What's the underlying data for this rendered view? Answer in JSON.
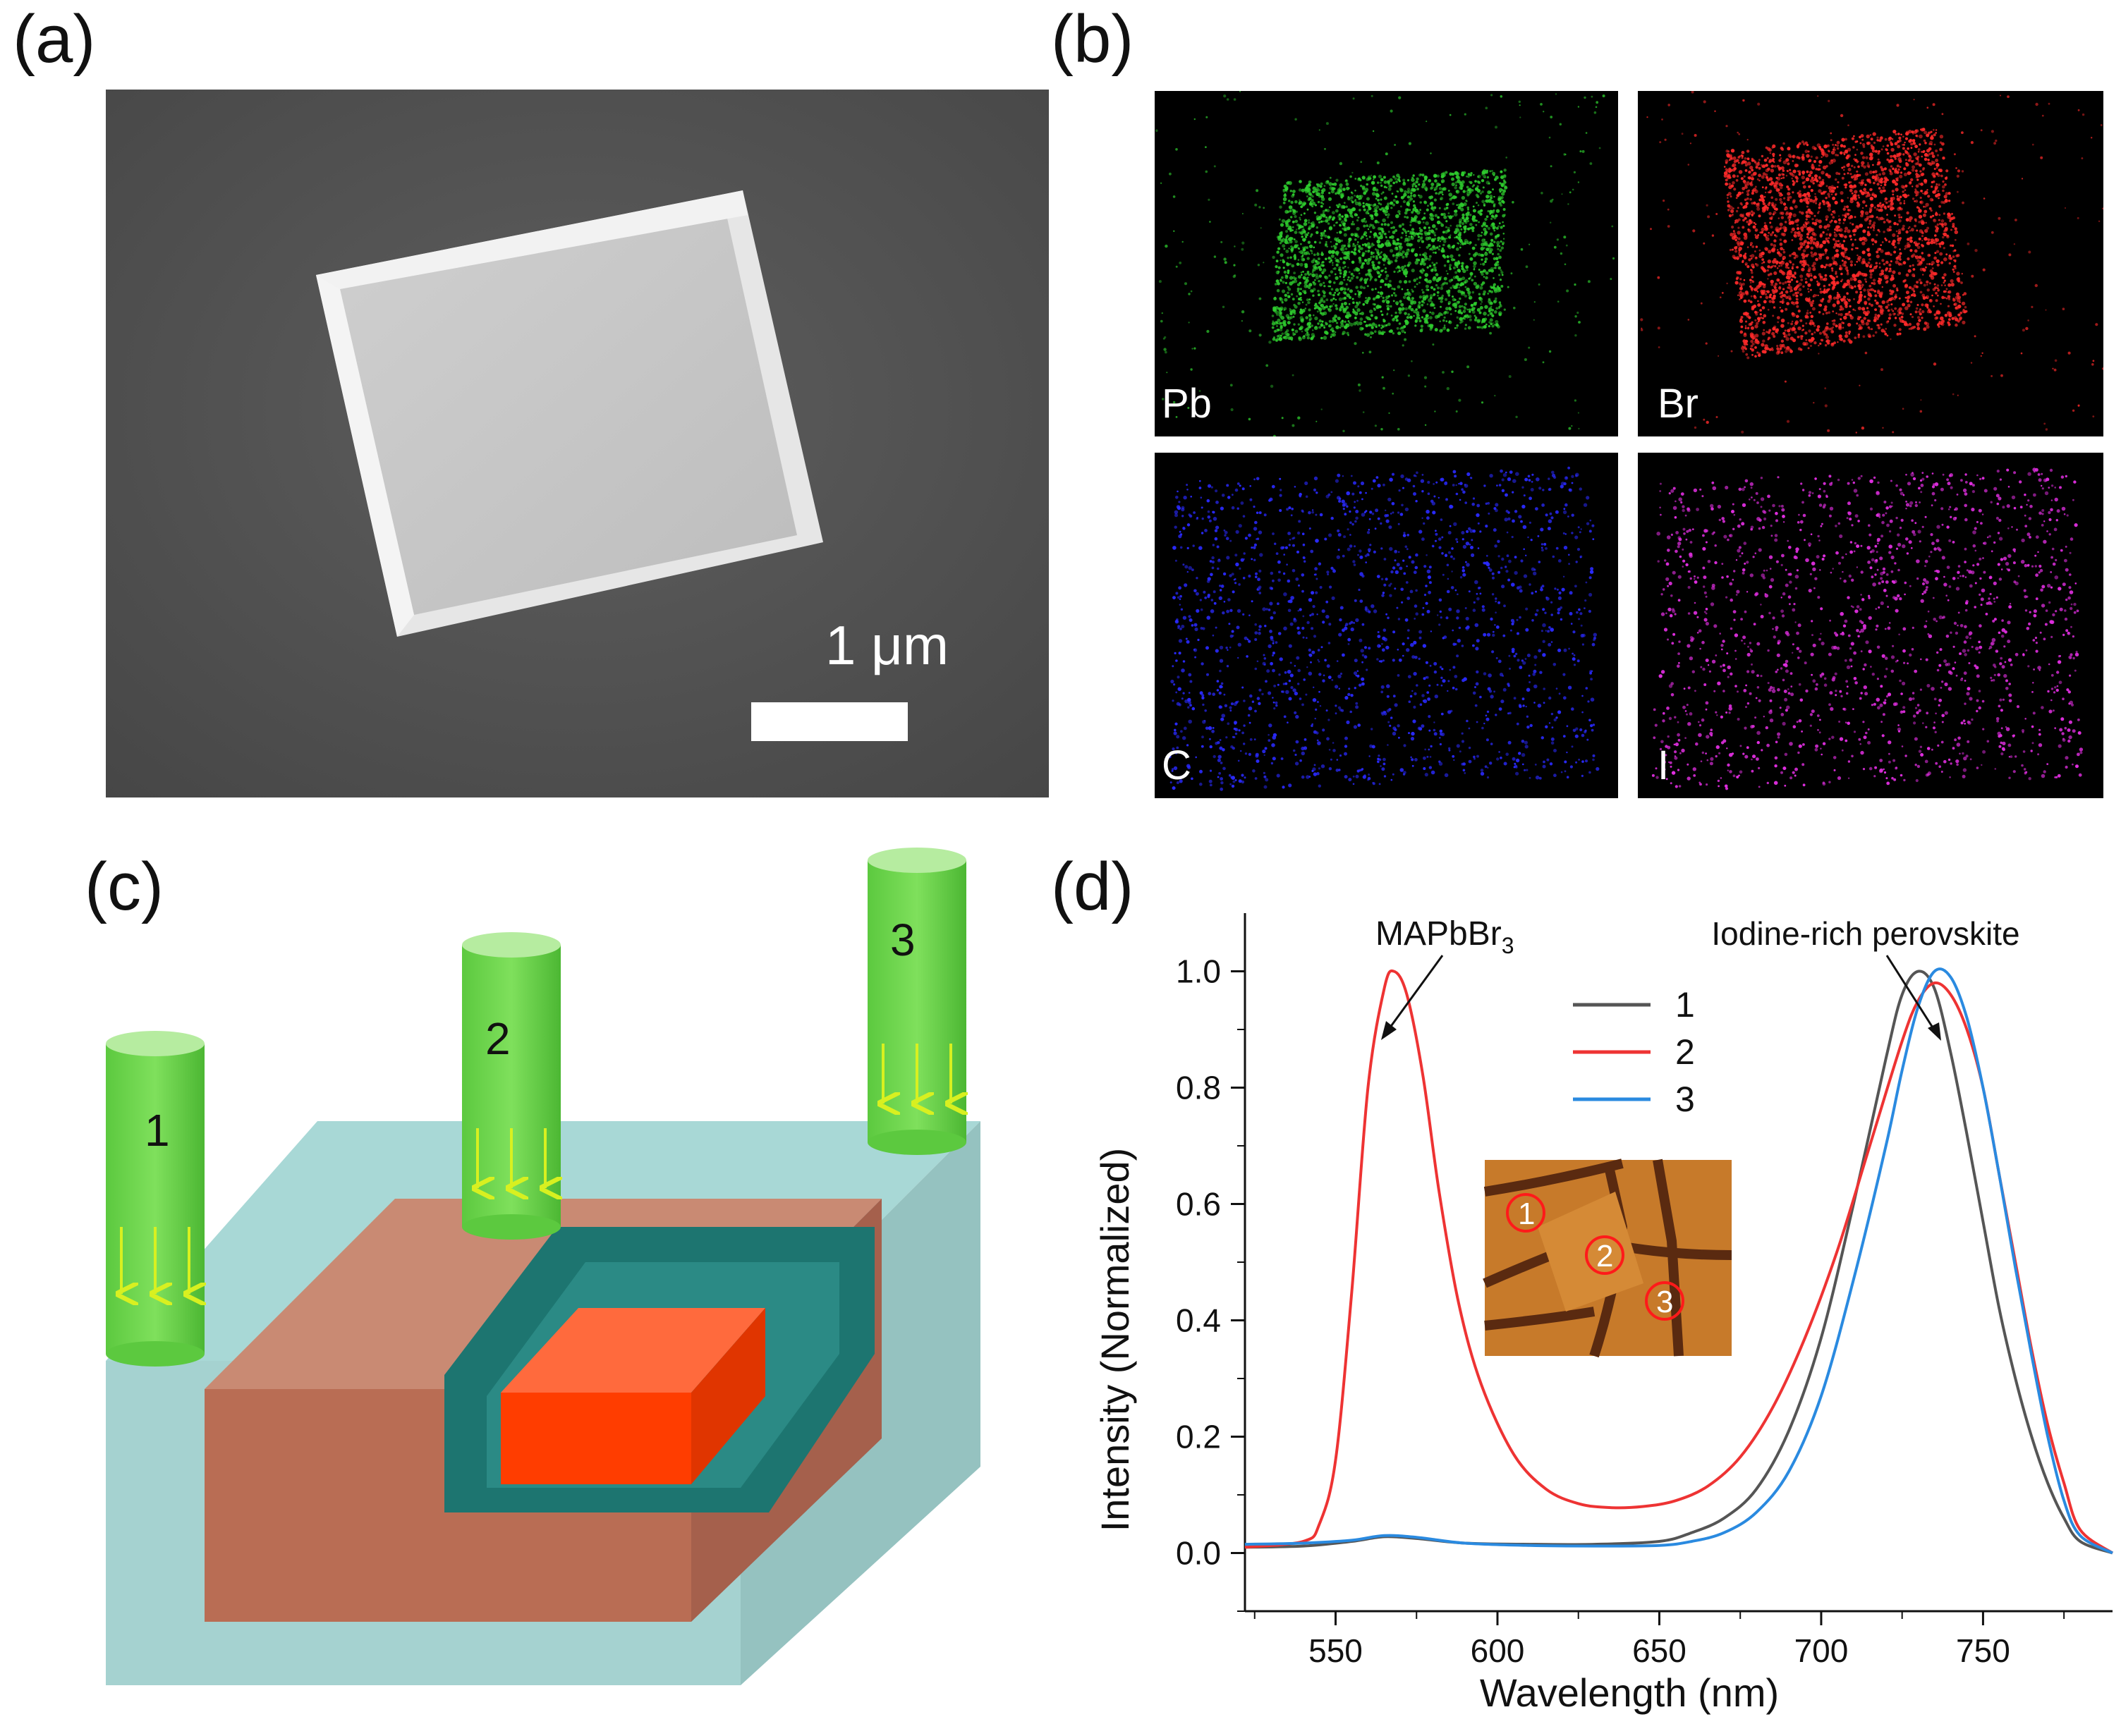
{
  "panels": {
    "a": {
      "label": "(a)",
      "scale_bar_text": "1 μm"
    },
    "b": {
      "label": "(b)",
      "maps": [
        {
          "element": "Pb",
          "color": "#2ecc2e"
        },
        {
          "element": "Br",
          "color": "#ff2a2a"
        },
        {
          "element": "C",
          "color": "#2a2aff"
        },
        {
          "element": "I",
          "color": "#e02ee0"
        }
      ]
    },
    "c": {
      "label": "(c)",
      "beams": [
        "1",
        "2",
        "3"
      ]
    },
    "d": {
      "label": "(d)",
      "inset_points": [
        "1",
        "2",
        "3"
      ]
    }
  },
  "chart_data": {
    "type": "line",
    "title": "",
    "xlabel": "Wavelength (nm)",
    "ylabel": "Intensity (Normalized)",
    "xlim": [
      522,
      790
    ],
    "ylim": [
      -0.1,
      1.1
    ],
    "x_ticks": [
      550,
      600,
      650,
      700,
      750
    ],
    "y_ticks": [
      0.0,
      0.2,
      0.4,
      0.6,
      0.8,
      1.0
    ],
    "x_tick_labels": [
      "550",
      "600",
      "650",
      "700",
      "750"
    ],
    "y_tick_labels": [
      "0.0",
      "0.2",
      "0.4",
      "0.6",
      "0.8",
      "1.0"
    ],
    "legend": [
      "1",
      "2",
      "3"
    ],
    "annotations": {
      "peak1": "MAPbBr",
      "peak1_sub": "3",
      "peak2": "Iodine-rich perovskite"
    },
    "series": [
      {
        "name": "1",
        "color": "#555555",
        "x": [
          522,
          540,
          555,
          565,
          575,
          590,
          610,
          630,
          650,
          660,
          670,
          680,
          690,
          700,
          710,
          720,
          725,
          730,
          735,
          740,
          745,
          750,
          755,
          760,
          765,
          770,
          775,
          780,
          790
        ],
        "y": [
          0.01,
          0.012,
          0.02,
          0.028,
          0.025,
          0.017,
          0.015,
          0.015,
          0.02,
          0.035,
          0.06,
          0.11,
          0.21,
          0.37,
          0.6,
          0.85,
          0.96,
          1.0,
          0.97,
          0.86,
          0.72,
          0.57,
          0.42,
          0.3,
          0.2,
          0.12,
          0.06,
          0.02,
          0.0
        ]
      },
      {
        "name": "2",
        "color": "#ee3333",
        "x": [
          522,
          540,
          545,
          550,
          555,
          560,
          565,
          568,
          572,
          577,
          582,
          588,
          595,
          605,
          615,
          625,
          635,
          645,
          655,
          665,
          675,
          685,
          695,
          705,
          715,
          725,
          730,
          735,
          740,
          745,
          750,
          755,
          760,
          765,
          770,
          775,
          780,
          790
        ],
        "y": [
          0.01,
          0.02,
          0.05,
          0.16,
          0.45,
          0.8,
          0.97,
          1.0,
          0.96,
          0.82,
          0.62,
          0.43,
          0.29,
          0.17,
          0.11,
          0.085,
          0.078,
          0.08,
          0.09,
          0.115,
          0.165,
          0.25,
          0.37,
          0.52,
          0.7,
          0.88,
          0.95,
          0.98,
          0.96,
          0.9,
          0.8,
          0.65,
          0.5,
          0.35,
          0.22,
          0.12,
          0.04,
          0.0
        ]
      },
      {
        "name": "3",
        "color": "#2a8ae0",
        "x": [
          522,
          540,
          555,
          565,
          575,
          590,
          610,
          630,
          650,
          660,
          670,
          680,
          690,
          700,
          710,
          720,
          725,
          730,
          735,
          740,
          745,
          750,
          755,
          760,
          765,
          770,
          775,
          780,
          790
        ],
        "y": [
          0.015,
          0.017,
          0.022,
          0.03,
          0.027,
          0.017,
          0.013,
          0.012,
          0.013,
          0.02,
          0.035,
          0.07,
          0.14,
          0.27,
          0.47,
          0.7,
          0.83,
          0.94,
          1.0,
          0.99,
          0.92,
          0.8,
          0.65,
          0.49,
          0.34,
          0.2,
          0.09,
          0.03,
          0.0
        ]
      }
    ]
  }
}
